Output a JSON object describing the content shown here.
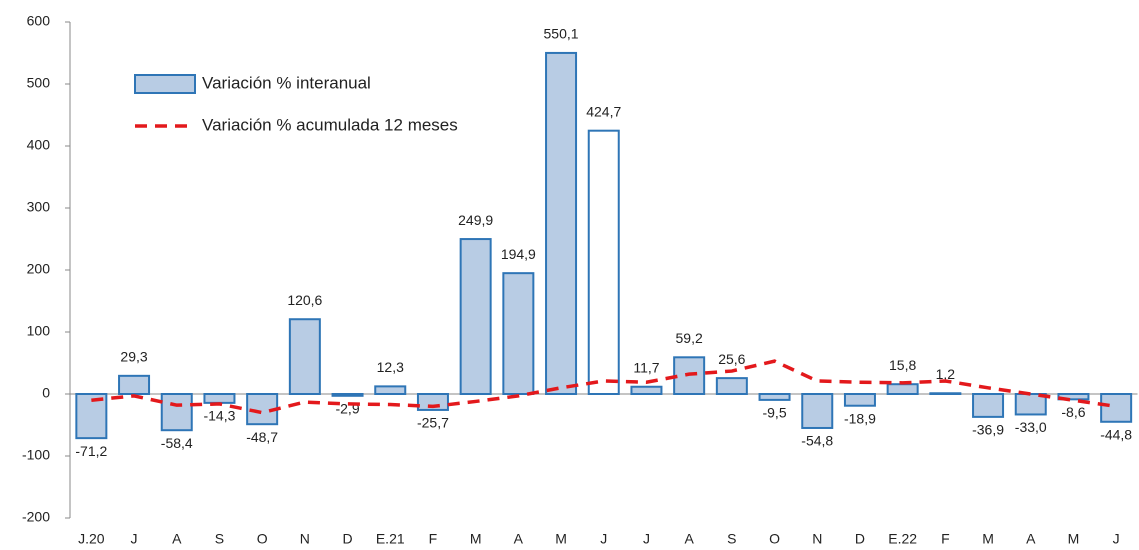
{
  "chart_data": {
    "type": "bar",
    "categories": [
      "J.20",
      "J",
      "A",
      "S",
      "O",
      "N",
      "D",
      "E.21",
      "F",
      "M",
      "A",
      "M",
      "J",
      "J",
      "A",
      "S",
      "O",
      "N",
      "D",
      "E.22",
      "F",
      "M",
      "A",
      "M",
      "J"
    ],
    "series": [
      {
        "name": "Variación % interanual",
        "type": "bar",
        "color": "#b8cce4",
        "edge_color": "#2e75b6",
        "colors": [
          "#b8cce4",
          "#b8cce4",
          "#b8cce4",
          "#b8cce4",
          "#b8cce4",
          "#b8cce4",
          "#b8cce4",
          "#b8cce4",
          "#b8cce4",
          "#b8cce4",
          "#b8cce4",
          "#b8cce4",
          "#ffffff",
          "#b8cce4",
          "#b8cce4",
          "#b8cce4",
          "#b8cce4",
          "#b8cce4",
          "#b8cce4",
          "#b8cce4",
          "#b8cce4",
          "#b8cce4",
          "#b8cce4",
          "#b8cce4",
          "#b8cce4"
        ],
        "values": [
          -71.2,
          29.3,
          -58.4,
          -14.3,
          -48.7,
          120.6,
          -2.9,
          12.3,
          -25.7,
          249.9,
          194.9,
          550.1,
          424.7,
          11.7,
          59.2,
          25.6,
          -9.5,
          -54.8,
          -18.9,
          15.8,
          1.2,
          -36.9,
          -33.0,
          -8.6,
          -44.8
        ],
        "value_labels": [
          "-71,2",
          "29,3",
          "-58,4",
          "-14,3",
          "-48,7",
          "120,6",
          "-2,9",
          "12,3",
          "-25,7",
          "249,9",
          "194,9",
          "550,1",
          "424,7",
          "11,7",
          "59,2",
          "25,6",
          "-9,5",
          "-54,8",
          "-18,9",
          "15,8",
          "1,2",
          "-36,9",
          "-33,0",
          "-8,6",
          "-44,8"
        ]
      },
      {
        "name": "Variación % acumulada 12 meses",
        "type": "line",
        "color": "#e3191c",
        "dashed": true,
        "values": [
          -10,
          -3,
          -18,
          -16,
          -30,
          -13,
          -16,
          -17,
          -20,
          -12,
          -3,
          10,
          21,
          19,
          32,
          37,
          53,
          21,
          19,
          18,
          21,
          10,
          0,
          -10,
          -20
        ]
      }
    ],
    "ylim": [
      -200,
      600
    ],
    "yticks": [
      -200,
      -100,
      0,
      100,
      200,
      300,
      400,
      500,
      600
    ],
    "legend": "upper-left",
    "grid": false
  }
}
